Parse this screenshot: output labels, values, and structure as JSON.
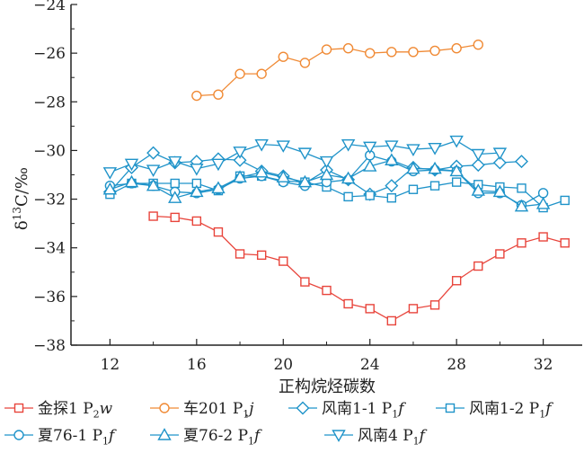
{
  "chart_data": {
    "type": "line",
    "xlabel": "正构烷烃碳数",
    "ylabel": "δ13C/‰",
    "xlim": [
      10.2,
      33.8
    ],
    "ylim": [
      -38,
      -24
    ],
    "xticks": [
      12,
      16,
      20,
      24,
      28,
      32
    ],
    "xtick_labels": [
      "12",
      "16",
      "20",
      "24",
      "28",
      "32"
    ],
    "yticks": [
      -38,
      -36,
      -34,
      -32,
      -30,
      -28,
      -26,
      -24
    ],
    "ytick_labels": [
      "−38",
      "−36",
      "−34",
      "−32",
      "−30",
      "−28",
      "−26",
      "−24"
    ],
    "grid": false,
    "legend_position": "bottom",
    "series": [
      {
        "name": "金探1 P2w",
        "name_main": "金探1 P",
        "name_sub": "2",
        "name_rest": "w",
        "color": "#e8453c",
        "marker": "square",
        "x": [
          14,
          15,
          16,
          17,
          18,
          19,
          20,
          21,
          22,
          23,
          24,
          25,
          26,
          27,
          28,
          29,
          30,
          31,
          32,
          33
        ],
        "y": [
          -32.7,
          -32.75,
          -32.9,
          -33.35,
          -34.25,
          -34.3,
          -34.55,
          -35.4,
          -35.75,
          -36.3,
          -36.5,
          -37.0,
          -36.5,
          -36.35,
          -35.35,
          -34.75,
          -34.25,
          -33.8,
          -33.55,
          -33.8
        ]
      },
      {
        "name": "车201 P1j",
        "name_main": "车201 P",
        "name_sub": "1",
        "name_rest": "j",
        "color": "#f08a35",
        "marker": "circle",
        "x": [
          16,
          17,
          18,
          19,
          20,
          21,
          22,
          23,
          24,
          25,
          26,
          27,
          28,
          29
        ],
        "y": [
          -27.75,
          -27.7,
          -26.85,
          -26.85,
          -26.15,
          -26.4,
          -25.85,
          -25.8,
          -26.0,
          -25.95,
          -25.95,
          -25.9,
          -25.8,
          -25.65
        ]
      },
      {
        "name": "风南1-1 P1f",
        "name_main": "风南1-1 P",
        "name_sub": "1",
        "name_rest": "f",
        "color": "#1f93c9",
        "marker": "diamond",
        "x": [
          12,
          13,
          14,
          15,
          16,
          17,
          18,
          19,
          20,
          21,
          22,
          23,
          24,
          25,
          26,
          27,
          28,
          29,
          30,
          31
        ],
        "y": [
          -31.7,
          -30.7,
          -30.1,
          -30.5,
          -30.45,
          -30.35,
          -30.4,
          -30.85,
          -31.05,
          -31.35,
          -30.8,
          -31.2,
          -31.8,
          -31.45,
          -30.7,
          -30.8,
          -30.65,
          -30.6,
          -30.5,
          -30.45
        ]
      },
      {
        "name": "风南1-2 P1f",
        "name_main": "风南1-2 P",
        "name_sub": "1",
        "name_rest": "f",
        "color": "#1f93c9",
        "marker": "square",
        "x": [
          12,
          13,
          14,
          15,
          16,
          17,
          18,
          19,
          20,
          21,
          22,
          23,
          24,
          25,
          26,
          27,
          28,
          29,
          30,
          31,
          32,
          33
        ],
        "y": [
          -31.8,
          -31.35,
          -31.35,
          -31.35,
          -31.35,
          -31.65,
          -31.05,
          -31.05,
          -31.25,
          -31.3,
          -31.5,
          -31.9,
          -31.85,
          -31.95,
          -31.6,
          -31.45,
          -31.3,
          -31.4,
          -31.5,
          -31.55,
          -32.35,
          -32.05
        ]
      },
      {
        "name": "夏76-1 P1f",
        "name_main": "夏76-1 P",
        "name_sub": "1",
        "name_rest": "f",
        "color": "#1f93c9",
        "marker": "circle",
        "x": [
          12,
          13,
          14,
          15,
          16,
          17,
          18,
          19,
          20,
          21,
          22,
          23,
          24,
          25,
          26,
          27,
          28,
          29,
          30,
          31,
          32
        ],
        "y": [
          -31.45,
          -31.35,
          -31.45,
          -31.7,
          -31.75,
          -31.6,
          -31.15,
          -31.05,
          -31.3,
          -31.45,
          -31.3,
          -31.2,
          -30.2,
          -30.45,
          -30.85,
          -30.8,
          -30.85,
          -31.75,
          -31.75,
          -32.25,
          -31.75
        ]
      },
      {
        "name": "夏76-2 P1f",
        "name_main": "夏76-2 P",
        "name_sub": "1",
        "name_rest": "f",
        "color": "#1f93c9",
        "marker": "triangle",
        "x": [
          12,
          13,
          14,
          15,
          16,
          17,
          18,
          19,
          20,
          21,
          22,
          23,
          24,
          25,
          26,
          27,
          28,
          29,
          30,
          31,
          32
        ],
        "y": [
          -31.6,
          -31.3,
          -31.45,
          -31.95,
          -31.7,
          -31.55,
          -31.1,
          -30.9,
          -31.1,
          -31.3,
          -31.0,
          -31.15,
          -30.65,
          -30.4,
          -30.75,
          -30.75,
          -30.85,
          -31.65,
          -31.7,
          -32.3,
          -32.2
        ]
      },
      {
        "name": "风南4 P1f",
        "name_main": "风南4 P",
        "name_sub": "1",
        "name_rest": "f",
        "color": "#1f93c9",
        "marker": "triangle-down",
        "x": [
          12,
          13,
          14,
          15,
          16,
          17,
          18,
          19,
          20,
          21,
          22,
          23,
          24,
          25,
          26,
          27,
          28,
          29,
          30
        ],
        "y": [
          -30.9,
          -30.55,
          -30.8,
          -30.45,
          -30.75,
          -30.55,
          -30.05,
          -29.75,
          -29.8,
          -30.1,
          -30.45,
          -29.75,
          -29.85,
          -29.8,
          -29.95,
          -29.9,
          -29.6,
          -30.15,
          -30.1
        ]
      }
    ]
  }
}
